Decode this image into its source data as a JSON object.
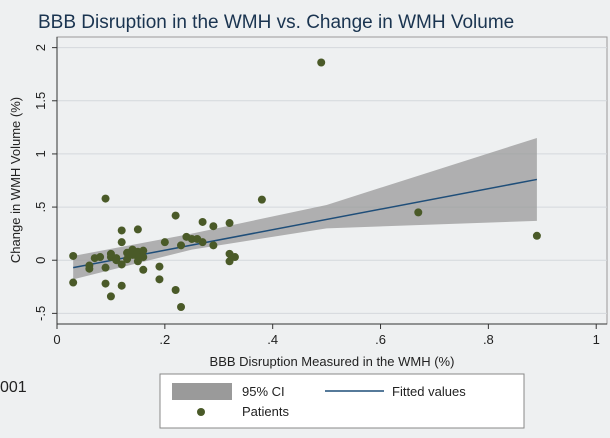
{
  "side_text": "001",
  "chart_data": {
    "type": "scatter",
    "title": "BBB Disruption in the WMH vs. Change in WMH Volume",
    "xlabel": "BBB Disruption Measured in the WMH (%)",
    "ylabel": "Change in WMH Volume (%)",
    "xlim": [
      0,
      1.02
    ],
    "ylim": [
      -0.6,
      2.1
    ],
    "x_ticks": [
      {
        "value": 0,
        "label": "0"
      },
      {
        "value": 0.2,
        "label": ".2"
      },
      {
        "value": 0.4,
        "label": ".4"
      },
      {
        "value": 0.6,
        "label": ".6"
      },
      {
        "value": 0.8,
        "label": ".8"
      },
      {
        "value": 1,
        "label": "1"
      }
    ],
    "y_ticks": [
      {
        "value": -0.5,
        "label": "-.5"
      },
      {
        "value": 0,
        "label": "0"
      },
      {
        "value": 0.5,
        "label": ".5"
      },
      {
        "value": 1,
        "label": "1"
      },
      {
        "value": 1.5,
        "label": "1.5"
      },
      {
        "value": 2,
        "label": "2"
      }
    ],
    "grid": true,
    "legend": {
      "placement": "bottom",
      "entries": {
        "ci": "95% CI",
        "fit": "Fitted values",
        "points": "Patients"
      }
    },
    "colors": {
      "points": "#4a5a28",
      "fit_line": "#1f4e79",
      "ci_band": "#9a9a9a",
      "title": "#1a3450"
    },
    "fit_line": {
      "x": [
        0.03,
        0.89
      ],
      "y": [
        -0.07,
        0.76
      ]
    },
    "ci_band": {
      "x": [
        0.03,
        0.25,
        0.5,
        0.89
      ],
      "upper": [
        0.04,
        0.25,
        0.52,
        1.15
      ],
      "lower": [
        -0.18,
        0.1,
        0.3,
        0.37
      ]
    },
    "points": [
      {
        "x": 0.03,
        "y": 0.04
      },
      {
        "x": 0.03,
        "y": -0.21
      },
      {
        "x": 0.06,
        "y": -0.05
      },
      {
        "x": 0.06,
        "y": -0.08
      },
      {
        "x": 0.07,
        "y": 0.02
      },
      {
        "x": 0.08,
        "y": 0.03
      },
      {
        "x": 0.09,
        "y": -0.07
      },
      {
        "x": 0.09,
        "y": 0.58
      },
      {
        "x": 0.09,
        "y": -0.22
      },
      {
        "x": 0.1,
        "y": 0.03
      },
      {
        "x": 0.1,
        "y": 0.06
      },
      {
        "x": 0.1,
        "y": -0.34
      },
      {
        "x": 0.11,
        "y": 0.02
      },
      {
        "x": 0.11,
        "y": 0.0
      },
      {
        "x": 0.12,
        "y": 0.28
      },
      {
        "x": 0.12,
        "y": 0.17
      },
      {
        "x": 0.12,
        "y": -0.04
      },
      {
        "x": 0.12,
        "y": -0.24
      },
      {
        "x": 0.13,
        "y": 0.07
      },
      {
        "x": 0.13,
        "y": 0.01
      },
      {
        "x": 0.14,
        "y": 0.1
      },
      {
        "x": 0.14,
        "y": 0.05
      },
      {
        "x": 0.15,
        "y": 0.08
      },
      {
        "x": 0.15,
        "y": 0.03
      },
      {
        "x": 0.15,
        "y": 0.29
      },
      {
        "x": 0.15,
        "y": -0.01
      },
      {
        "x": 0.16,
        "y": 0.03
      },
      {
        "x": 0.16,
        "y": -0.09
      },
      {
        "x": 0.16,
        "y": 0.09
      },
      {
        "x": 0.19,
        "y": -0.06
      },
      {
        "x": 0.19,
        "y": -0.18
      },
      {
        "x": 0.2,
        "y": 0.17
      },
      {
        "x": 0.22,
        "y": 0.42
      },
      {
        "x": 0.22,
        "y": -0.28
      },
      {
        "x": 0.23,
        "y": 0.14
      },
      {
        "x": 0.23,
        "y": -0.44
      },
      {
        "x": 0.24,
        "y": 0.22
      },
      {
        "x": 0.25,
        "y": 0.2
      },
      {
        "x": 0.26,
        "y": 0.2
      },
      {
        "x": 0.27,
        "y": 0.36
      },
      {
        "x": 0.27,
        "y": 0.17
      },
      {
        "x": 0.29,
        "y": 0.32
      },
      {
        "x": 0.29,
        "y": 0.14
      },
      {
        "x": 0.32,
        "y": 0.35
      },
      {
        "x": 0.32,
        "y": 0.06
      },
      {
        "x": 0.32,
        "y": -0.01
      },
      {
        "x": 0.33,
        "y": 0.03
      },
      {
        "x": 0.38,
        "y": 0.57
      },
      {
        "x": 0.49,
        "y": 1.86
      },
      {
        "x": 0.67,
        "y": 0.45
      },
      {
        "x": 0.89,
        "y": 0.23
      }
    ]
  }
}
